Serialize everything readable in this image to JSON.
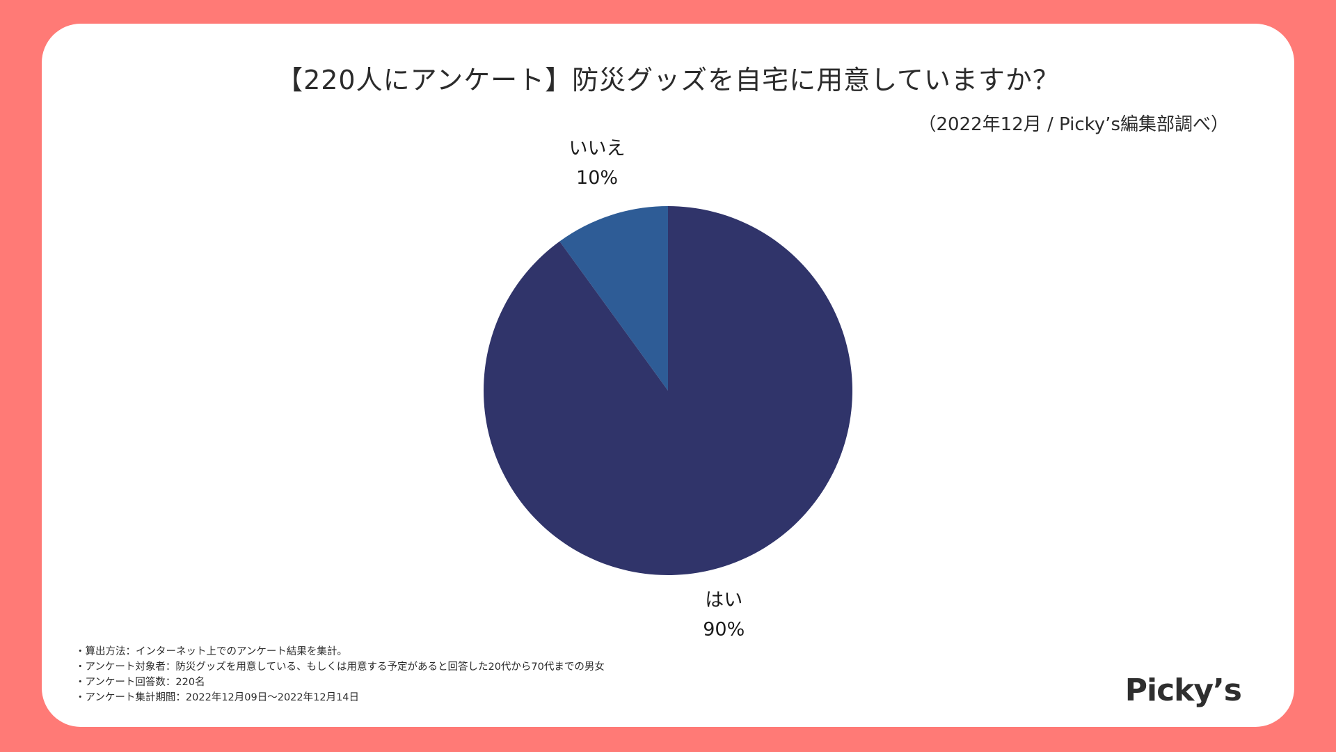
{
  "header": {
    "title": "【220人にアンケート】防災グッズを自宅に用意していますか？",
    "source": "（2022年12月 / Picky’s編集部調べ）"
  },
  "chart_data": {
    "type": "pie",
    "title": "【220人にアンケート】防災グッズを自宅に用意していますか？",
    "slices": [
      {
        "label": "いいえ",
        "value": 10,
        "value_label": "10%",
        "color": "#2e5c96"
      },
      {
        "label": "はい",
        "value": 90,
        "value_label": "90%",
        "color": "#30346a"
      }
    ],
    "start": "12 o'clock, counter-clockwise for いいえ"
  },
  "notes": [
    "・算出方法：インターネット上でのアンケート結果を集計。",
    "・アンケート対象者：防災グッズを用意している、もしくは用意する予定があると回答した20代から70代までの男女",
    "・アンケート回答数：220名",
    "・アンケート集計期間：2022年12月09日～2022年12月14日"
  ],
  "logo": {
    "text": "Picky’s"
  },
  "colors": {
    "background": "#ff7a76",
    "card": "#ffffff"
  }
}
